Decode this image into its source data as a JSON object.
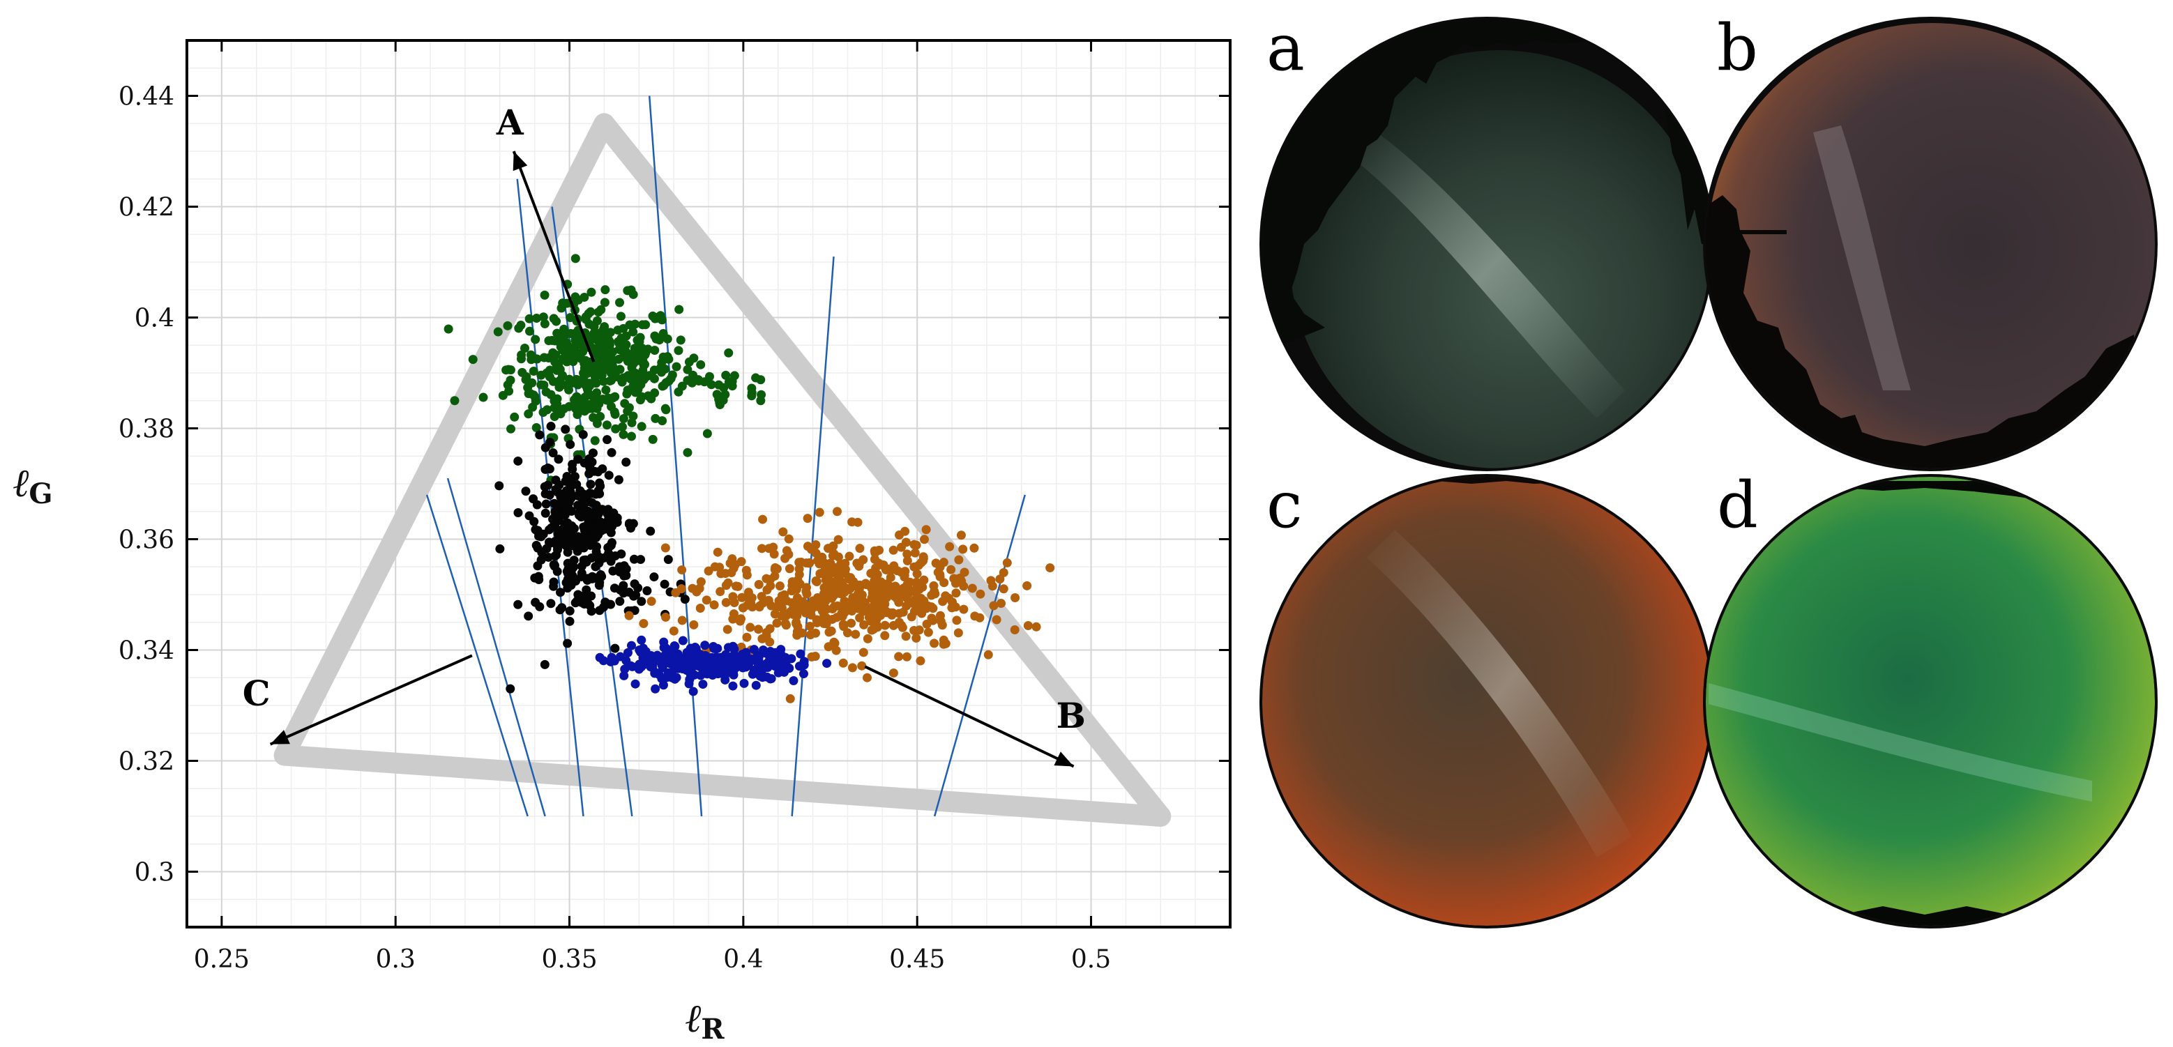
{
  "chart_data": {
    "type": "scatter",
    "title": "",
    "xlabel_main": "ℓ",
    "xlabel_sub": "R",
    "ylabel_main": "ℓ",
    "ylabel_sub": "G",
    "xlim": [
      0.24,
      0.54
    ],
    "ylim": [
      0.29,
      0.45
    ],
    "xticks": [
      0.25,
      0.3,
      0.35,
      0.4,
      0.45,
      0.5
    ],
    "xtick_labels": [
      "0.25",
      "0.3",
      "0.35",
      "0.4",
      "0.45",
      "0.5"
    ],
    "yticks": [
      0.3,
      0.32,
      0.34,
      0.36,
      0.38,
      0.4,
      0.42,
      0.44
    ],
    "ytick_labels": [
      "0.3",
      "0.32",
      "0.34",
      "0.36",
      "0.38",
      "0.4",
      "0.42",
      "0.44"
    ],
    "grid": true,
    "gamut_triangle": [
      [
        0.36,
        0.435
      ],
      [
        0.268,
        0.321
      ],
      [
        0.52,
        0.31
      ]
    ],
    "series": [
      {
        "name": "green cluster",
        "color": "#0a5c0a",
        "center": [
          0.357,
          0.391
        ],
        "spread": [
          0.012,
          0.006
        ],
        "count": 420,
        "tail": {
          "from": [
            0.37,
            0.392
          ],
          "to": [
            0.405,
            0.386
          ],
          "count": 45
        },
        "outliers": [
          [
            0.317,
            0.385
          ],
          [
            0.405,
            0.385
          ],
          [
            0.374,
            0.378
          ]
        ]
      },
      {
        "name": "black cluster",
        "color": "#050505",
        "center": [
          0.352,
          0.361
        ],
        "spread": [
          0.008,
          0.007
        ],
        "count": 330,
        "tail": {
          "from": [
            0.36,
            0.352
          ],
          "to": [
            0.38,
            0.352
          ],
          "count": 25
        },
        "outliers": [
          [
            0.333,
            0.333
          ]
        ]
      },
      {
        "name": "orange cluster",
        "color": "#b3600d",
        "center": [
          0.43,
          0.35
        ],
        "spread": [
          0.02,
          0.005
        ],
        "count": 520,
        "tail": {
          "from": [
            0.39,
            0.352
          ],
          "to": [
            0.415,
            0.349
          ],
          "count": 20
        },
        "outliers": [
          [
            0.472,
            0.348
          ],
          [
            0.427,
            0.365
          ]
        ]
      },
      {
        "name": "blue cluster",
        "color": "#0a14a8",
        "center": [
          0.39,
          0.3375
        ],
        "spread": [
          0.013,
          0.0015
        ],
        "count": 300,
        "tail": null,
        "outliers": []
      }
    ],
    "separator_lines": [
      [
        [
          0.315,
          0.371
        ],
        [
          0.343,
          0.31
        ]
      ],
      [
        [
          0.309,
          0.368
        ],
        [
          0.338,
          0.31
        ]
      ],
      [
        [
          0.335,
          0.425
        ],
        [
          0.354,
          0.31
        ]
      ],
      [
        [
          0.345,
          0.42
        ],
        [
          0.368,
          0.31
        ]
      ],
      [
        [
          0.373,
          0.44
        ],
        [
          0.388,
          0.31
        ]
      ],
      [
        [
          0.426,
          0.411
        ],
        [
          0.414,
          0.31
        ]
      ],
      [
        [
          0.481,
          0.368
        ],
        [
          0.455,
          0.31
        ]
      ]
    ],
    "annotations": [
      {
        "label": "A",
        "arrow_from": [
          0.357,
          0.392
        ],
        "arrow_to": [
          0.334,
          0.43
        ],
        "text_at": [
          0.329,
          0.433
        ]
      },
      {
        "label": "B",
        "arrow_from": [
          0.435,
          0.337
        ],
        "arrow_to": [
          0.495,
          0.319
        ],
        "text_at": [
          0.49,
          0.326
        ]
      },
      {
        "label": "C",
        "arrow_from": [
          0.322,
          0.339
        ],
        "arrow_to": [
          0.264,
          0.323
        ],
        "text_at": [
          0.256,
          0.33
        ]
      }
    ]
  },
  "photos": [
    {
      "label": "a",
      "description": "dark starry all-sky, trees at rim"
    },
    {
      "label": "b",
      "description": "brownish sky, bright yellow-orange glow at top-left"
    },
    {
      "label": "c",
      "description": "orange-red sky with Milky Way"
    },
    {
      "label": "d",
      "description": "green sky, yellow glow at right"
    }
  ]
}
